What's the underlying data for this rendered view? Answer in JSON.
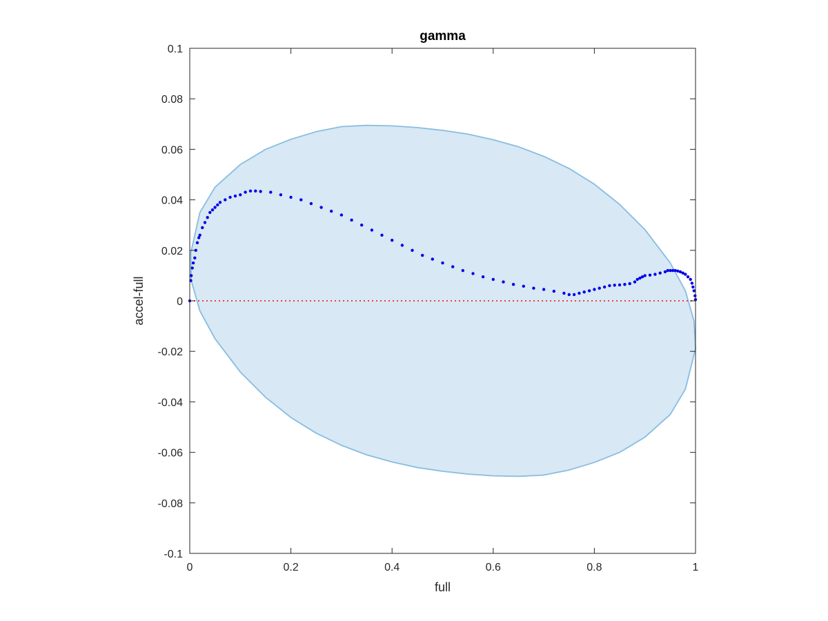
{
  "chart_data": {
    "type": "scatter",
    "title": "gamma",
    "xlabel": "full",
    "ylabel": "accel-full",
    "xlim": [
      0,
      1
    ],
    "ylim": [
      -0.1,
      0.1
    ],
    "xticks": [
      0,
      0.2,
      0.4,
      0.6,
      0.8,
      1
    ],
    "xtick_labels": [
      "0",
      "0.2",
      "0.4",
      "0.6",
      "0.8",
      "1"
    ],
    "yticks": [
      -0.1,
      -0.08,
      -0.06,
      -0.04,
      -0.02,
      0,
      0.02,
      0.04,
      0.06,
      0.08,
      0.1
    ],
    "ytick_labels": [
      "-0.1",
      "-0.08",
      "-0.06",
      "-0.04",
      "-0.02",
      "0",
      "0.02",
      "0.04",
      "0.06",
      "0.08",
      "0.1"
    ],
    "grid": false,
    "reference_line": {
      "y": 0,
      "color": "#e8413a",
      "style": "dotted"
    },
    "region": {
      "shape": "ellipse",
      "fill": "#d8e8f4",
      "stroke": "#86bde0",
      "outline": [
        [
          0.002,
          0.019
        ],
        [
          0.02,
          0.035
        ],
        [
          0.05,
          0.045
        ],
        [
          0.1,
          0.054
        ],
        [
          0.15,
          0.06
        ],
        [
          0.2,
          0.064
        ],
        [
          0.25,
          0.067
        ],
        [
          0.3,
          0.069
        ],
        [
          0.35,
          0.0695
        ],
        [
          0.4,
          0.0693
        ],
        [
          0.45,
          0.0686
        ],
        [
          0.5,
          0.0675
        ],
        [
          0.55,
          0.066
        ],
        [
          0.6,
          0.0638
        ],
        [
          0.65,
          0.061
        ],
        [
          0.7,
          0.0572
        ],
        [
          0.75,
          0.0524
        ],
        [
          0.8,
          0.0462
        ],
        [
          0.85,
          0.0382
        ],
        [
          0.9,
          0.0282
        ],
        [
          0.95,
          0.015
        ],
        [
          0.98,
          0.004
        ],
        [
          0.997,
          -0.008
        ],
        [
          1.0,
          -0.019
        ],
        [
          0.98,
          -0.035
        ],
        [
          0.95,
          -0.045
        ],
        [
          0.9,
          -0.054
        ],
        [
          0.85,
          -0.06
        ],
        [
          0.8,
          -0.064
        ],
        [
          0.75,
          -0.067
        ],
        [
          0.7,
          -0.069
        ],
        [
          0.65,
          -0.0695
        ],
        [
          0.6,
          -0.0693
        ],
        [
          0.55,
          -0.0686
        ],
        [
          0.5,
          -0.0675
        ],
        [
          0.45,
          -0.066
        ],
        [
          0.4,
          -0.0638
        ],
        [
          0.35,
          -0.061
        ],
        [
          0.3,
          -0.0572
        ],
        [
          0.25,
          -0.0524
        ],
        [
          0.2,
          -0.0462
        ],
        [
          0.15,
          -0.0382
        ],
        [
          0.1,
          -0.0282
        ],
        [
          0.05,
          -0.015
        ],
        [
          0.02,
          -0.004
        ],
        [
          0.003,
          0.008
        ]
      ]
    },
    "series": [
      {
        "color": "#0000e6",
        "points": [
          [
            0.0,
            0.0
          ],
          [
            0.002,
            0.008
          ],
          [
            0.003,
            0.01
          ],
          [
            0.005,
            0.013
          ],
          [
            0.007,
            0.015
          ],
          [
            0.01,
            0.017
          ],
          [
            0.012,
            0.02
          ],
          [
            0.015,
            0.023
          ],
          [
            0.018,
            0.025
          ],
          [
            0.02,
            0.026
          ],
          [
            0.025,
            0.029
          ],
          [
            0.03,
            0.031
          ],
          [
            0.035,
            0.033
          ],
          [
            0.04,
            0.035
          ],
          [
            0.045,
            0.036
          ],
          [
            0.05,
            0.037
          ],
          [
            0.055,
            0.038
          ],
          [
            0.06,
            0.039
          ],
          [
            0.07,
            0.04
          ],
          [
            0.08,
            0.041
          ],
          [
            0.09,
            0.0415
          ],
          [
            0.1,
            0.042
          ],
          [
            0.11,
            0.043
          ],
          [
            0.12,
            0.0435
          ],
          [
            0.13,
            0.0435
          ],
          [
            0.14,
            0.0433
          ],
          [
            0.16,
            0.043
          ],
          [
            0.18,
            0.042
          ],
          [
            0.2,
            0.041
          ],
          [
            0.22,
            0.04
          ],
          [
            0.24,
            0.0385
          ],
          [
            0.26,
            0.037
          ],
          [
            0.28,
            0.0355
          ],
          [
            0.3,
            0.034
          ],
          [
            0.32,
            0.032
          ],
          [
            0.34,
            0.03
          ],
          [
            0.36,
            0.028
          ],
          [
            0.38,
            0.026
          ],
          [
            0.4,
            0.024
          ],
          [
            0.42,
            0.022
          ],
          [
            0.44,
            0.02
          ],
          [
            0.46,
            0.018
          ],
          [
            0.48,
            0.0165
          ],
          [
            0.5,
            0.015
          ],
          [
            0.52,
            0.0135
          ],
          [
            0.54,
            0.012
          ],
          [
            0.56,
            0.0108
          ],
          [
            0.58,
            0.0095
          ],
          [
            0.6,
            0.0085
          ],
          [
            0.62,
            0.0075
          ],
          [
            0.64,
            0.0065
          ],
          [
            0.66,
            0.0058
          ],
          [
            0.68,
            0.005
          ],
          [
            0.7,
            0.0045
          ],
          [
            0.72,
            0.0038
          ],
          [
            0.74,
            0.003
          ],
          [
            0.75,
            0.0025
          ],
          [
            0.76,
            0.0025
          ],
          [
            0.77,
            0.003
          ],
          [
            0.78,
            0.0035
          ],
          [
            0.79,
            0.004
          ],
          [
            0.8,
            0.0045
          ],
          [
            0.81,
            0.005
          ],
          [
            0.82,
            0.0055
          ],
          [
            0.83,
            0.006
          ],
          [
            0.84,
            0.0062
          ],
          [
            0.85,
            0.0063
          ],
          [
            0.86,
            0.0065
          ],
          [
            0.87,
            0.0068
          ],
          [
            0.88,
            0.0075
          ],
          [
            0.885,
            0.0085
          ],
          [
            0.89,
            0.009
          ],
          [
            0.895,
            0.0095
          ],
          [
            0.9,
            0.01
          ],
          [
            0.91,
            0.0102
          ],
          [
            0.92,
            0.0105
          ],
          [
            0.93,
            0.011
          ],
          [
            0.94,
            0.0115
          ],
          [
            0.945,
            0.012
          ],
          [
            0.95,
            0.012
          ],
          [
            0.955,
            0.012
          ],
          [
            0.96,
            0.012
          ],
          [
            0.965,
            0.0118
          ],
          [
            0.97,
            0.0115
          ],
          [
            0.975,
            0.011
          ],
          [
            0.98,
            0.0105
          ],
          [
            0.985,
            0.0095
          ],
          [
            0.99,
            0.0085
          ],
          [
            0.993,
            0.007
          ],
          [
            0.995,
            0.0055
          ],
          [
            0.997,
            0.004
          ],
          [
            0.999,
            0.002
          ],
          [
            1.0,
            0.0005
          ]
        ]
      }
    ]
  }
}
